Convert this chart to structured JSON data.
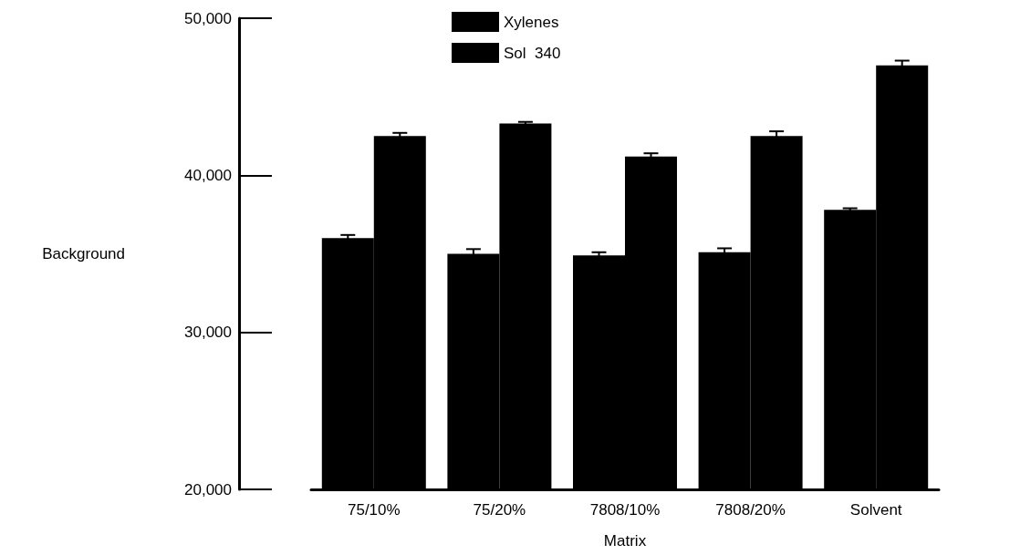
{
  "chart_data": {
    "type": "bar",
    "xlabel": "Matrix",
    "ylabel": "Background",
    "categories": [
      "75/10%",
      "75/20%",
      "7808/10%",
      "7808/20%",
      "Solvent"
    ],
    "series": [
      {
        "name": "Xylenes",
        "color": "#000000",
        "values": [
          36000,
          35000,
          34900,
          35100,
          37800
        ],
        "errors": [
          200,
          300,
          200,
          250,
          100
        ]
      },
      {
        "name": "Sol  340",
        "color": "#000000",
        "values": [
          42500,
          43300,
          41200,
          42500,
          47000
        ],
        "errors": [
          200,
          100,
          200,
          300,
          300
        ]
      }
    ],
    "ylim": [
      20000,
      50000
    ],
    "yticks": [
      {
        "value": 20000,
        "label": "20,000"
      },
      {
        "value": 30000,
        "label": "30,000"
      },
      {
        "value": 40000,
        "label": "40,000"
      },
      {
        "value": 50000,
        "label": "50,000"
      }
    ],
    "grid": false,
    "legend": "top"
  }
}
